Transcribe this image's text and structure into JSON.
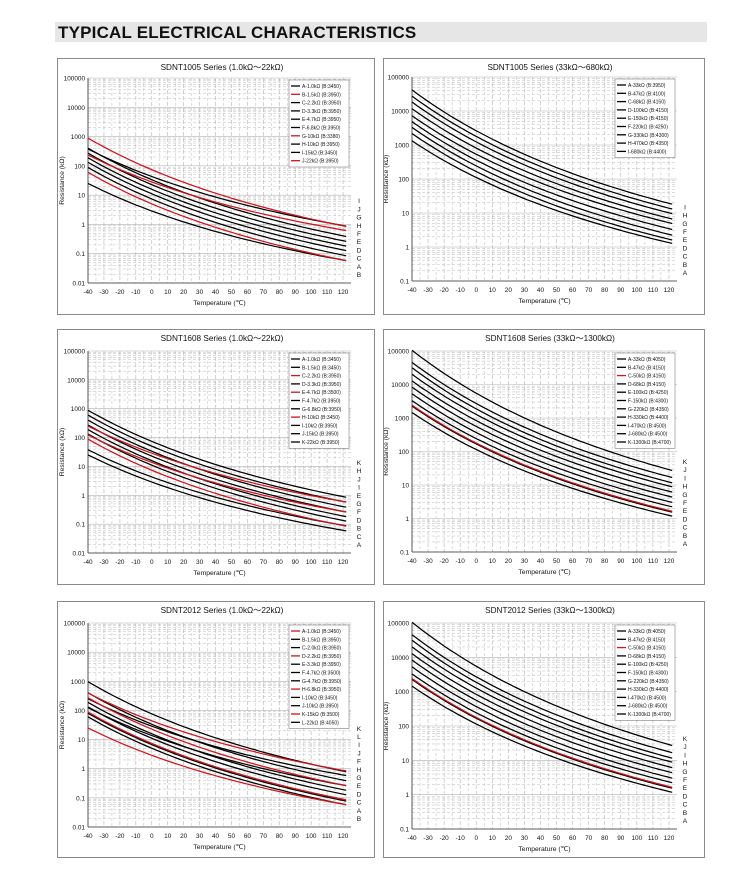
{
  "header": {
    "title": "TYPICAL ELECTRICAL CHARACTERISTICS"
  },
  "colors": {
    "black": "#000000",
    "red": "#d0141c",
    "grid": "#b4b4b4",
    "header_bg": "#e6e6e6"
  },
  "chart_data": [
    {
      "type": "line",
      "title": "SDNT1005 Series (1.0kΩ～22kΩ)",
      "xlabel": "Temperature (℃)",
      "ylabel": "Resistance (kΩ)",
      "log_y": true,
      "xlim": [
        -40,
        125
      ],
      "ylim": [
        0.01,
        100000
      ],
      "x_ticks": [
        -40,
        -30,
        -20,
        -10,
        0,
        10,
        20,
        30,
        40,
        50,
        60,
        70,
        80,
        90,
        100,
        110,
        120
      ],
      "y_tick_labels": [
        "0.01",
        "0.1",
        "1",
        "10",
        "100",
        "1000",
        "10000",
        "100000"
      ],
      "grid": true,
      "legend_position": "top-right",
      "series": [
        {
          "name": "A-1.0kΩ (B:3450)",
          "tag": "A",
          "r25": 1.0,
          "b": 3450,
          "color": "#000000"
        },
        {
          "name": "B-1.5kΩ (B:3950)",
          "tag": "B",
          "r25": 1.5,
          "b": 3950,
          "color": "#d0141c"
        },
        {
          "name": "C-2.2kΩ (B:3950)",
          "tag": "C",
          "r25": 2.2,
          "b": 3950,
          "color": "#000000"
        },
        {
          "name": "D-3.3kΩ (B:3950)",
          "tag": "D",
          "r25": 3.3,
          "b": 3950,
          "color": "#000000"
        },
        {
          "name": "E-4.7kΩ (B:3950)",
          "tag": "E",
          "r25": 4.7,
          "b": 3950,
          "color": "#000000"
        },
        {
          "name": "F-6.8kΩ (B:3950)",
          "tag": "F",
          "r25": 6.8,
          "b": 3950,
          "color": "#000000"
        },
        {
          "name": "G-10kΩ (B:3380)",
          "tag": "G",
          "r25": 10,
          "b": 3380,
          "color": "#d0141c"
        },
        {
          "name": "H-10kΩ (B:3950)",
          "tag": "H",
          "r25": 10,
          "b": 3950,
          "color": "#000000"
        },
        {
          "name": "I-15kΩ (B:3450)",
          "tag": "I",
          "r25": 15,
          "b": 3450,
          "color": "#000000"
        },
        {
          "name": "J-22kΩ (B:3950)",
          "tag": "J",
          "r25": 22,
          "b": 3950,
          "color": "#d0141c"
        }
      ]
    },
    {
      "type": "line",
      "title": "SDNT1005 Series (33kΩ～680kΩ)",
      "xlabel": "Temperature (℃)",
      "ylabel": "Resistance (kΩ)",
      "log_y": true,
      "xlim": [
        -40,
        125
      ],
      "ylim": [
        0.1,
        100000
      ],
      "x_ticks": [
        -40,
        -30,
        -20,
        -10,
        0,
        10,
        20,
        30,
        40,
        50,
        60,
        70,
        80,
        90,
        100,
        110,
        120
      ],
      "y_tick_labels": [
        "0.1",
        "1",
        "10",
        "100",
        "1000",
        "10000",
        "100000"
      ],
      "grid": true,
      "legend_position": "top-right",
      "series": [
        {
          "name": "A-33kΩ (B:3950)",
          "tag": "A",
          "r25": 33,
          "b": 3950,
          "color": "#000000"
        },
        {
          "name": "B-47kΩ (B:4100)",
          "tag": "B",
          "r25": 47,
          "b": 4100,
          "color": "#000000"
        },
        {
          "name": "C-68kΩ (B:4150)",
          "tag": "C",
          "r25": 68,
          "b": 4150,
          "color": "#000000"
        },
        {
          "name": "D-100kΩ (B:4150)",
          "tag": "D",
          "r25": 100,
          "b": 4150,
          "color": "#000000"
        },
        {
          "name": "E-150kΩ (B:4150)",
          "tag": "E",
          "r25": 150,
          "b": 4150,
          "color": "#000000"
        },
        {
          "name": "F-220kΩ (B:4250)",
          "tag": "F",
          "r25": 220,
          "b": 4250,
          "color": "#000000"
        },
        {
          "name": "G-330kΩ (B:4300)",
          "tag": "G",
          "r25": 330,
          "b": 4300,
          "color": "#000000"
        },
        {
          "name": "H-470kΩ (B:4350)",
          "tag": "H",
          "r25": 470,
          "b": 4350,
          "color": "#000000"
        },
        {
          "name": "I-680kΩ (B:4400)",
          "tag": "I",
          "r25": 680,
          "b": 4400,
          "color": "#000000"
        }
      ]
    },
    {
      "type": "line",
      "title": "SDNT1608 Series (1.0kΩ～22kΩ)",
      "xlabel": "Temperature (℃)",
      "ylabel": "Resistance (kΩ)",
      "log_y": true,
      "xlim": [
        -40,
        125
      ],
      "ylim": [
        0.01,
        100000
      ],
      "x_ticks": [
        -40,
        -30,
        -20,
        -10,
        0,
        10,
        20,
        30,
        40,
        50,
        60,
        70,
        80,
        90,
        100,
        110,
        120
      ],
      "y_tick_labels": [
        "0.01",
        "0.1",
        "1",
        "10",
        "100",
        "1000",
        "10000",
        "100000"
      ],
      "grid": true,
      "legend_position": "top-right",
      "series": [
        {
          "name": "A-1.0kΩ (B:3450)",
          "tag": "A",
          "r25": 1.0,
          "b": 3450,
          "color": "#000000"
        },
        {
          "name": "B-1.5kΩ (B:3450)",
          "tag": "B",
          "r25": 1.5,
          "b": 3450,
          "color": "#000000"
        },
        {
          "name": "C-2.2kΩ (B:3950)",
          "tag": "C",
          "r25": 2.2,
          "b": 3950,
          "color": "#d0141c"
        },
        {
          "name": "D-3.3kΩ (B:3950)",
          "tag": "D",
          "r25": 3.3,
          "b": 3950,
          "color": "#000000"
        },
        {
          "name": "E-4.7kΩ (B:3500)",
          "tag": "E",
          "r25": 4.7,
          "b": 3500,
          "color": "#d0141c"
        },
        {
          "name": "F-4.7kΩ (B:3950)",
          "tag": "F",
          "r25": 4.7,
          "b": 3950,
          "color": "#000000"
        },
        {
          "name": "G-6.8kΩ (B:3950)",
          "tag": "G",
          "r25": 6.8,
          "b": 3950,
          "color": "#000000"
        },
        {
          "name": "H-10kΩ (B:3450)",
          "tag": "H",
          "r25": 10,
          "b": 3450,
          "color": "#d0141c"
        },
        {
          "name": "I-10kΩ (B:3950)",
          "tag": "I",
          "r25": 10,
          "b": 3950,
          "color": "#000000"
        },
        {
          "name": "J-15kΩ (B:3950)",
          "tag": "J",
          "r25": 15,
          "b": 3950,
          "color": "#000000"
        },
        {
          "name": "K-22kΩ (B:3950)",
          "tag": "K",
          "r25": 22,
          "b": 3950,
          "color": "#000000"
        }
      ]
    },
    {
      "type": "line",
      "title": "SDNT1608 Series (33kΩ～1300kΩ)",
      "xlabel": "Temperature (℃)",
      "ylabel": "Resistance (kΩ)",
      "log_y": true,
      "xlim": [
        -40,
        125
      ],
      "ylim": [
        0.1,
        100000
      ],
      "x_ticks": [
        -40,
        -30,
        -20,
        -10,
        0,
        10,
        20,
        30,
        40,
        50,
        60,
        70,
        80,
        90,
        100,
        110,
        120
      ],
      "y_tick_labels": [
        "0.1",
        "1",
        "10",
        "100",
        "1000",
        "10000",
        "100000"
      ],
      "grid": true,
      "legend_position": "top-right",
      "series": [
        {
          "name": "A-33kΩ (B:4050)",
          "tag": "A",
          "r25": 33,
          "b": 4050,
          "color": "#000000"
        },
        {
          "name": "B-47kΩ (B:4150)",
          "tag": "B",
          "r25": 47,
          "b": 4150,
          "color": "#000000"
        },
        {
          "name": "C-50kΩ (B:4150)",
          "tag": "C",
          "r25": 50,
          "b": 4150,
          "color": "#d0141c"
        },
        {
          "name": "D-68kΩ (B:4150)",
          "tag": "D",
          "r25": 68,
          "b": 4150,
          "color": "#000000"
        },
        {
          "name": "E-100kΩ (B:4250)",
          "tag": "E",
          "r25": 100,
          "b": 4250,
          "color": "#000000"
        },
        {
          "name": "F-150kΩ (B:4300)",
          "tag": "F",
          "r25": 150,
          "b": 4300,
          "color": "#000000"
        },
        {
          "name": "G-220kΩ (B:4350)",
          "tag": "G",
          "r25": 220,
          "b": 4350,
          "color": "#000000"
        },
        {
          "name": "H-330kΩ (B:4400)",
          "tag": "H",
          "r25": 330,
          "b": 4400,
          "color": "#000000"
        },
        {
          "name": "I-470kΩ (B:4500)",
          "tag": "I",
          "r25": 470,
          "b": 4500,
          "color": "#000000"
        },
        {
          "name": "J-680kΩ (B:4500)",
          "tag": "J",
          "r25": 680,
          "b": 4500,
          "color": "#000000"
        },
        {
          "name": "K-1300kΩ (B:4700)",
          "tag": "K",
          "r25": 1300,
          "b": 4700,
          "color": "#000000"
        }
      ]
    },
    {
      "type": "line",
      "title": "SDNT2012 Series (1.0kΩ～22kΩ)",
      "xlabel": "Temperature (℃)",
      "ylabel": "Resistance (kΩ)",
      "log_y": true,
      "xlim": [
        -40,
        125
      ],
      "ylim": [
        0.01,
        100000
      ],
      "x_ticks": [
        -40,
        -30,
        -20,
        -10,
        0,
        10,
        20,
        30,
        40,
        50,
        60,
        70,
        80,
        90,
        100,
        110,
        120
      ],
      "y_tick_labels": [
        "0.01",
        "0.1",
        "1",
        "10",
        "100",
        "1000",
        "10000",
        "100000"
      ],
      "grid": true,
      "legend_position": "top-right",
      "series": [
        {
          "name": "A-1.0kΩ (B:3450)",
          "tag": "A",
          "r25": 1.0,
          "b": 3450,
          "color": "#d0141c"
        },
        {
          "name": "B-1.5kΩ (B:3950)",
          "tag": "B",
          "r25": 1.5,
          "b": 3950,
          "color": "#000000"
        },
        {
          "name": "C-2.0kΩ (B:3950)",
          "tag": "C",
          "r25": 2.0,
          "b": 3950,
          "color": "#000000"
        },
        {
          "name": "D-2.2kΩ (B:3950)",
          "tag": "D",
          "r25": 2.2,
          "b": 3950,
          "color": "#d0141c"
        },
        {
          "name": "E-3.3kΩ (B:3950)",
          "tag": "E",
          "r25": 3.3,
          "b": 3950,
          "color": "#000000"
        },
        {
          "name": "F-4.7kΩ (B:3500)",
          "tag": "F",
          "r25": 4.7,
          "b": 3500,
          "color": "#000000"
        },
        {
          "name": "G-4.7kΩ (B:3950)",
          "tag": "G",
          "r25": 4.7,
          "b": 3950,
          "color": "#000000"
        },
        {
          "name": "H-6.8kΩ (B:3950)",
          "tag": "H",
          "r25": 6.8,
          "b": 3950,
          "color": "#d0141c"
        },
        {
          "name": "I-10kΩ (B:3450)",
          "tag": "I",
          "r25": 10,
          "b": 3450,
          "color": "#000000"
        },
        {
          "name": "J-10kΩ (B:3950)",
          "tag": "J",
          "r25": 10,
          "b": 3950,
          "color": "#000000"
        },
        {
          "name": "K-15kΩ (B:3500)",
          "tag": "K",
          "r25": 15,
          "b": 3500,
          "color": "#d0141c"
        },
        {
          "name": "L-22kΩ (B:4050)",
          "tag": "L",
          "r25": 22,
          "b": 4050,
          "color": "#000000"
        }
      ]
    },
    {
      "type": "line",
      "title": "SDNT2012 Series (33kΩ～1300kΩ)",
      "xlabel": "Temperature (℃)",
      "ylabel": "Resistance (kΩ)",
      "log_y": true,
      "xlim": [
        -40,
        125
      ],
      "ylim": [
        0.1,
        100000
      ],
      "x_ticks": [
        -40,
        -30,
        -20,
        -10,
        0,
        10,
        20,
        30,
        40,
        50,
        60,
        70,
        80,
        90,
        100,
        110,
        120
      ],
      "y_tick_labels": [
        "0.1",
        "1",
        "10",
        "100",
        "1000",
        "10000",
        "100000"
      ],
      "grid": true,
      "legend_position": "top-right",
      "series": [
        {
          "name": "A-33kΩ (B:4050)",
          "tag": "A",
          "r25": 33,
          "b": 4050,
          "color": "#000000"
        },
        {
          "name": "B-47kΩ (B:4150)",
          "tag": "B",
          "r25": 47,
          "b": 4150,
          "color": "#000000"
        },
        {
          "name": "C-50kΩ (B:4150)",
          "tag": "C",
          "r25": 50,
          "b": 4150,
          "color": "#d0141c"
        },
        {
          "name": "D-68kΩ (B:4150)",
          "tag": "D",
          "r25": 68,
          "b": 4150,
          "color": "#000000"
        },
        {
          "name": "E-100kΩ (B:4250)",
          "tag": "E",
          "r25": 100,
          "b": 4250,
          "color": "#000000"
        },
        {
          "name": "F-150kΩ (B:4300)",
          "tag": "F",
          "r25": 150,
          "b": 4300,
          "color": "#000000"
        },
        {
          "name": "G-220kΩ (B:4350)",
          "tag": "G",
          "r25": 220,
          "b": 4350,
          "color": "#000000"
        },
        {
          "name": "H-330kΩ (B:4400)",
          "tag": "H",
          "r25": 330,
          "b": 4400,
          "color": "#000000"
        },
        {
          "name": "I-470kΩ (B:4500)",
          "tag": "I",
          "r25": 470,
          "b": 4500,
          "color": "#000000"
        },
        {
          "name": "J-680kΩ (B:4500)",
          "tag": "J",
          "r25": 680,
          "b": 4500,
          "color": "#000000"
        },
        {
          "name": "K-1300kΩ (B:4700)",
          "tag": "K",
          "r25": 1300,
          "b": 4700,
          "color": "#000000"
        }
      ]
    }
  ]
}
